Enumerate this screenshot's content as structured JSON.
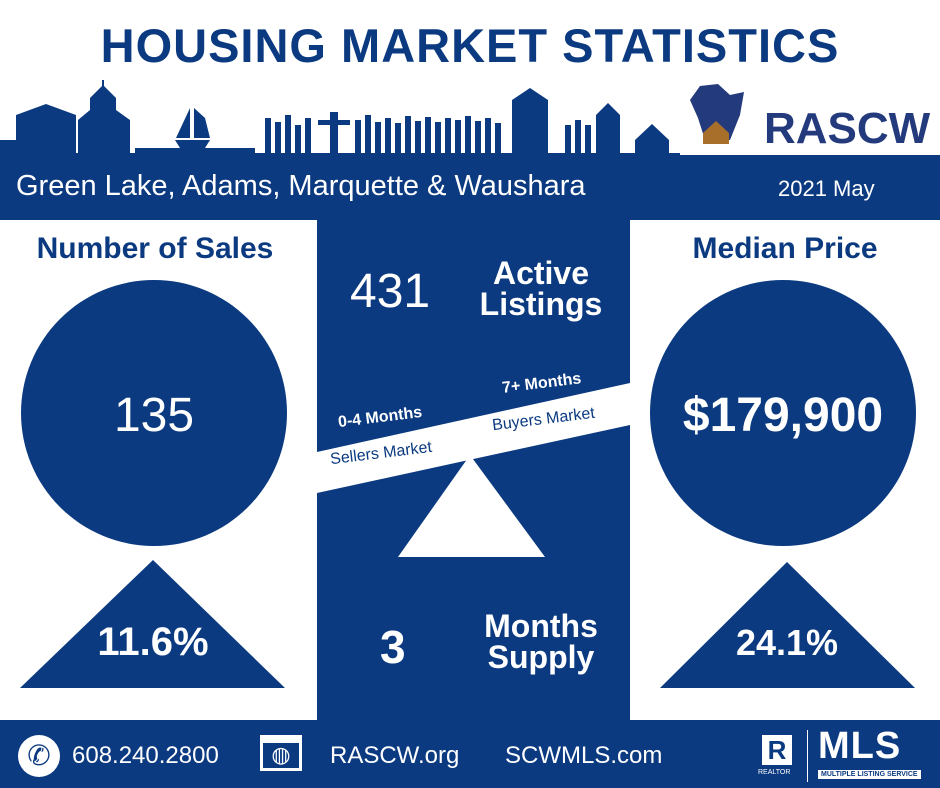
{
  "title": "HOUSING MARKET STATISTICS",
  "brand": "RASCW",
  "region": "Green Lake, Adams, Marquette & Waushara",
  "period": "2021 May",
  "sales": {
    "label": "Number of Sales",
    "value": "135",
    "change": "11.6%"
  },
  "listings": {
    "value": "431",
    "label_1": "Active",
    "label_2": "Listings"
  },
  "scale": {
    "left_top": "0-4 Months",
    "left_bottom": "Sellers Market",
    "right_top": "7+ Months",
    "right_bottom": "Buyers Market"
  },
  "supply": {
    "value": "3",
    "label_1": "Months",
    "label_2": "Supply"
  },
  "price": {
    "label": "Median Price",
    "value": "$179,900",
    "change": "24.1%"
  },
  "footer": {
    "phone": "608.240.2800",
    "site1": "RASCW.org",
    "site2": "SCWMLS.com",
    "realtor": "REALTOR",
    "mls": "MLS",
    "mls_sub": "MULTIPLE LISTING SERVICE"
  },
  "colors": {
    "navy": "#0b3a80",
    "house": "#a86f2a"
  }
}
